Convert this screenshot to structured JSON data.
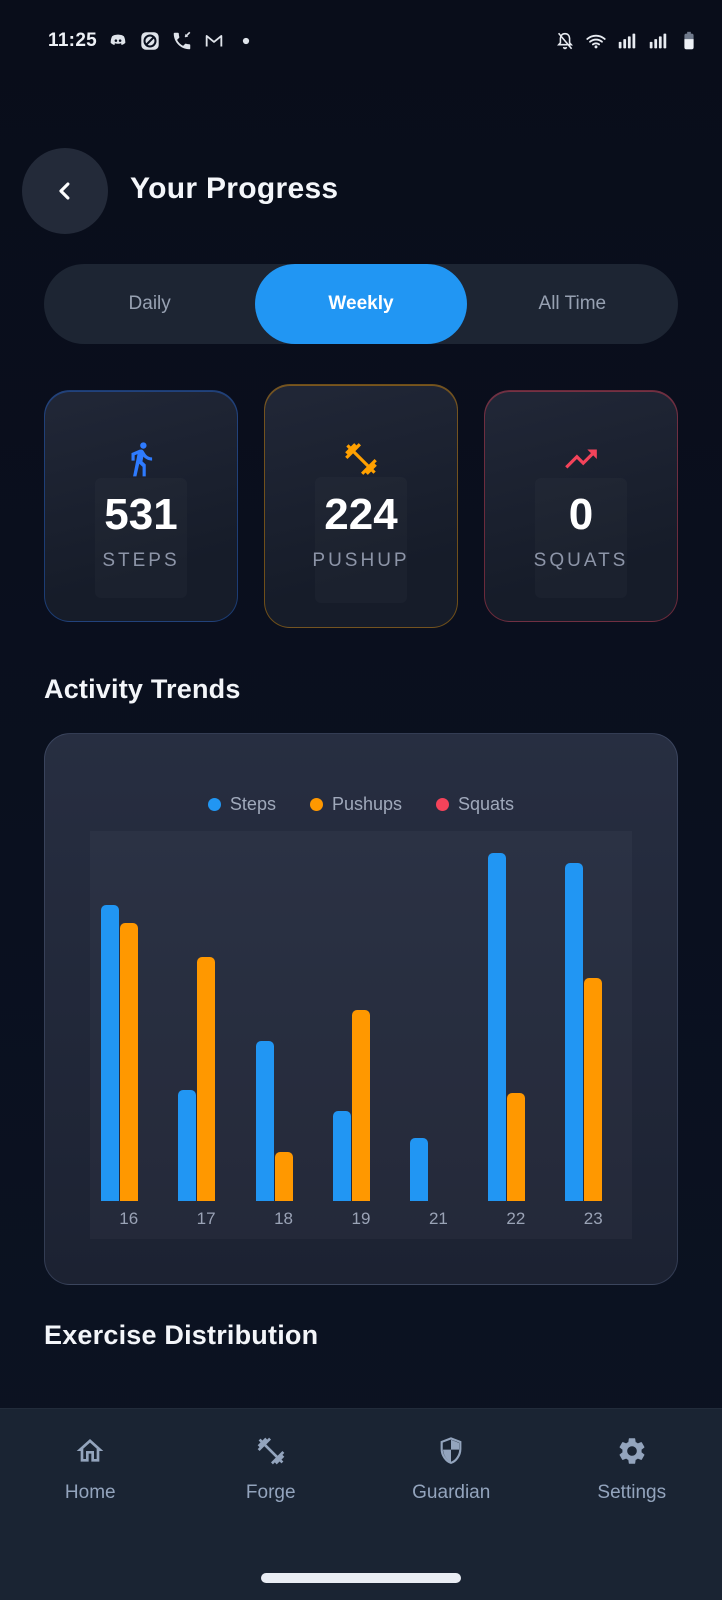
{
  "status_bar": {
    "time": "11:25",
    "notification_icons": [
      "discord-icon",
      "app-icon",
      "missed-call-icon",
      "gmail-icon",
      "overflow-dot"
    ],
    "system_icons": [
      "notifications-off-icon",
      "wifi-icon",
      "cell-signal-icon",
      "cell-signal-icon",
      "battery-icon"
    ]
  },
  "header": {
    "title": "Your Progress"
  },
  "tabs": {
    "items": [
      {
        "label": "Daily",
        "active": false
      },
      {
        "label": "Weekly",
        "active": true
      },
      {
        "label": "All Time",
        "active": false
      }
    ]
  },
  "stats": [
    {
      "icon": "walking-person-icon",
      "value": "531",
      "label": "STEPS",
      "accent": "#2e7bff"
    },
    {
      "icon": "dumbbell-icon",
      "value": "224",
      "label": "PUSHUP",
      "accent": "#ffa000"
    },
    {
      "icon": "trending-up-icon",
      "value": "0",
      "label": "SQUATS",
      "accent": "#f4435a"
    }
  ],
  "sections": {
    "activity_trends": "Activity Trends",
    "exercise_distribution": "Exercise Distribution"
  },
  "chart_data": {
    "type": "bar",
    "title": "Activity Trends",
    "categories": [
      "16",
      "17",
      "18",
      "19",
      "21",
      "22",
      "23"
    ],
    "series": [
      {
        "name": "Steps",
        "color": "#2196f3",
        "values": [
          85,
          32,
          46,
          26,
          18,
          100,
          97
        ]
      },
      {
        "name": "Pushups",
        "color": "#ff9800",
        "values": [
          80,
          70,
          14,
          55,
          0,
          31,
          64
        ]
      },
      {
        "name": "Squats",
        "color": "#f4435a",
        "values": [
          0,
          0,
          0,
          0,
          0,
          0,
          0
        ]
      }
    ],
    "xlabel": "",
    "ylabel": "",
    "ylim": [
      0,
      100
    ],
    "value_scale": "relative height, % of tallest bar (y-axis not labeled in UI)",
    "legend_position": "top",
    "grid": false
  },
  "nav": {
    "items": [
      {
        "icon": "home-icon",
        "label": "Home"
      },
      {
        "icon": "dumbbell-icon",
        "label": "Forge"
      },
      {
        "icon": "shield-icon",
        "label": "Guardian"
      },
      {
        "icon": "gear-icon",
        "label": "Settings"
      }
    ]
  },
  "colors": {
    "background": "#0a101f",
    "card_surface": "#1c2232",
    "accent_blue": "#2196f3",
    "accent_orange": "#ff9800",
    "accent_red": "#f4435a",
    "muted_text": "#97a1b2"
  }
}
